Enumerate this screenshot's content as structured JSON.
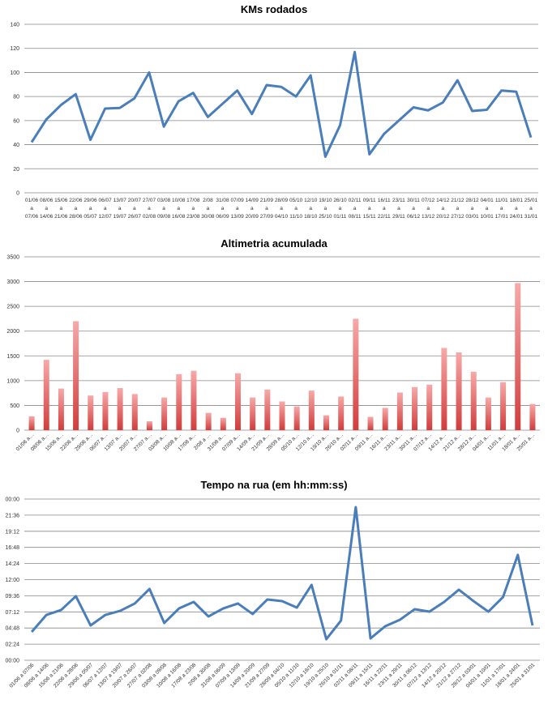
{
  "categories": [
    "01/06 a 07/06",
    "08/06 a 14/06",
    "15/06 a 21/06",
    "22/06 a 28/06",
    "29/06 a 05/07",
    "06/07 a 12/07",
    "13/07 a 19/07",
    "20/07 a 26/07",
    "27/07 a 02/08",
    "03/08 a 09/08",
    "10/08 a 16/08",
    "17/08 a 23/08",
    "2/08 a 30/08",
    "31/08 a 06/09",
    "07/09 a 13/09",
    "14/09 a 20/09",
    "21/09 a 27/09",
    "28/09 a 04/10",
    "05/10 a 11/10",
    "12/10 a 18/10",
    "19/10 a 25/10",
    "26/10 a 01/11",
    "02/11 a 08/11",
    "09/11 a 15/11",
    "16/11 a 22/11",
    "23/11 a 29/11",
    "30/11 a 06/12",
    "07/12 a 13/12",
    "14/12 a 20/12",
    "21/12 a 27/12",
    "28/12 a 03/01",
    "04/01 a 10/01",
    "11/01 a 17/01",
    "18/01 a 24/01",
    "25/01 a 31/01"
  ],
  "chart_data": [
    {
      "type": "line",
      "title": "KMs rodados",
      "ylim": [
        0,
        140
      ],
      "yticks": [
        "0",
        "20",
        "40",
        "60",
        "80",
        "100",
        "120",
        "140"
      ],
      "grid": true,
      "color": "#4a7ebb",
      "values": [
        42,
        61,
        73,
        82,
        44,
        70,
        70.5,
        78.5,
        100,
        55,
        76,
        83,
        63,
        74,
        85,
        65.5,
        89.5,
        88,
        80,
        97.5,
        30,
        56,
        117,
        32,
        49,
        60,
        71,
        68.5,
        75,
        93.5,
        68,
        69,
        85,
        84,
        46
      ]
    },
    {
      "type": "bar",
      "title": "Altimetria acumulada",
      "ylim": [
        0,
        3500
      ],
      "yticks": [
        "0",
        "500",
        "1000",
        "1500",
        "2000",
        "2500",
        "3000",
        "3500"
      ],
      "grid": true,
      "color_top": "#f7a9a8",
      "color_bottom": "#d23c3c",
      "values": [
        280,
        1420,
        840,
        2200,
        700,
        770,
        850,
        730,
        180,
        660,
        1130,
        1200,
        350,
        250,
        1150,
        660,
        820,
        580,
        480,
        800,
        300,
        680,
        2250,
        270,
        450,
        760,
        870,
        920,
        1660,
        1570,
        1180,
        660,
        970,
        2970,
        530
      ]
    },
    {
      "type": "line",
      "title": "Tempo na rua (em hh:mm:ss)",
      "ylim": [
        "00:00",
        "24:00"
      ],
      "yticks": [
        "00:00",
        "02:24",
        "04:48",
        "07:12",
        "09:36",
        "12:00",
        "14:24",
        "16:48",
        "19:12",
        "21:36",
        "00:00"
      ],
      "grid": true,
      "color": "#4a7ebb",
      "values": [
        "04:13",
        "06:45",
        "07:29",
        "09:32",
        "05:11",
        "06:45",
        "07:21",
        "08:27",
        "10:37",
        "05:33",
        "07:43",
        "08:41",
        "06:31",
        "07:43",
        "08:27",
        "06:53",
        "09:03",
        "08:48",
        "07:50",
        "11:13",
        "03:08",
        "05:55",
        "22:48",
        "03:15",
        "05:04",
        "06:02",
        "07:36",
        "07:14",
        "08:41",
        "10:30",
        "08:48",
        "07:14",
        "09:25",
        "15:41",
        "05:11"
      ]
    }
  ]
}
